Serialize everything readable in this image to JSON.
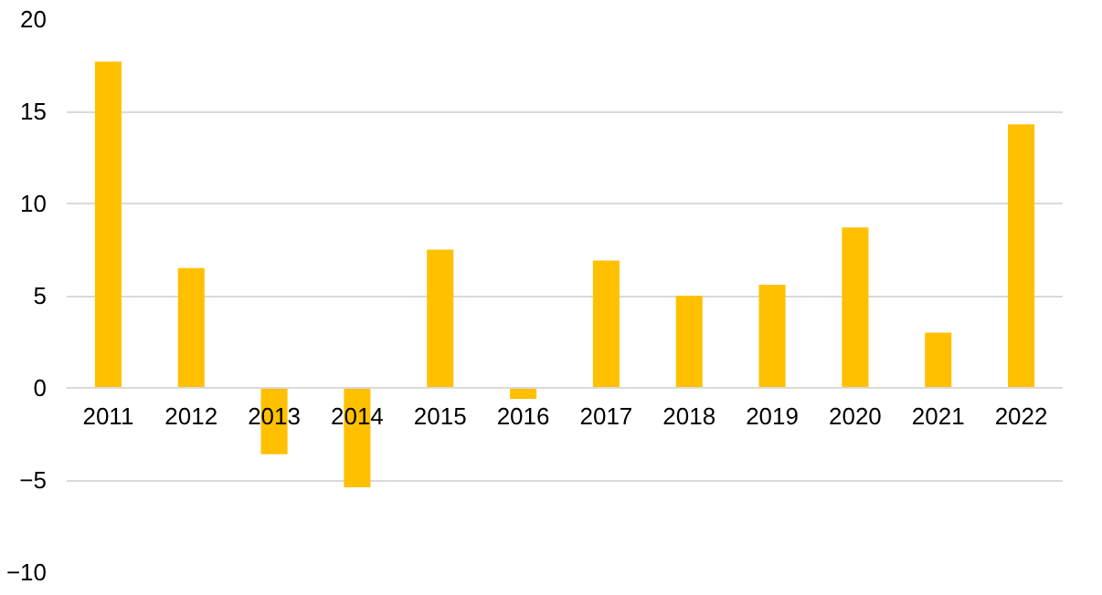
{
  "chart_data": {
    "type": "bar",
    "categories": [
      "2011",
      "2012",
      "2013",
      "2014",
      "2015",
      "2016",
      "2017",
      "2018",
      "2019",
      "2020",
      "2021",
      "2022"
    ],
    "values": [
      17.7,
      6.5,
      -3.6,
      -5.4,
      7.5,
      -0.6,
      6.9,
      5.0,
      5.6,
      8.7,
      3.0,
      14.3
    ],
    "color": "#ffc000",
    "ylim": [
      -10,
      20
    ],
    "yticks": [
      -10,
      -5,
      0,
      5,
      10,
      15,
      20
    ],
    "grid": "y"
  }
}
